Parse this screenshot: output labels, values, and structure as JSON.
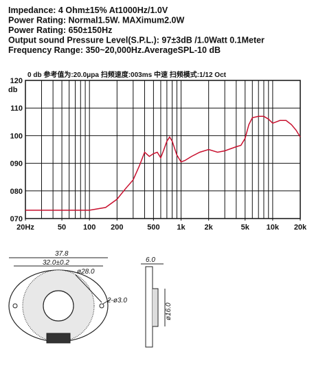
{
  "specs": [
    "Impedance: 4 Ohm±15%  At1000Hz/1.0V",
    "Power Rating: Normal1.5W. MAXimum2.0W",
    "Power Rating: 650±150Hz",
    "Output sound Pressure Level(S.P.L.): 97±3dB /1.0Watt 0.1Meter",
    "Frequency Range: 350~20,000Hz.AverageSPL-10 dB"
  ],
  "chart_data": {
    "type": "line",
    "header": "0 db  参考值为:20.0μpa  扫频速度:003ms  中速  扫频模式:1/12  Oct",
    "ylabel": "db",
    "x": [
      20,
      50,
      100,
      150,
      200,
      250,
      300,
      350,
      400,
      450,
      500,
      550,
      600,
      650,
      700,
      750,
      800,
      900,
      1000,
      1100,
      1300,
      1600,
      2000,
      2500,
      3000,
      4000,
      4500,
      5000,
      5500,
      6000,
      7000,
      8000,
      9000,
      10000,
      12000,
      14000,
      16000,
      18000,
      20000
    ],
    "values": [
      73,
      73,
      73,
      74,
      77,
      81,
      84,
      89,
      94,
      92.5,
      93.5,
      94,
      92,
      95,
      98,
      99.5,
      98,
      93,
      90.5,
      91,
      92.5,
      94,
      95,
      94,
      94.5,
      96,
      96.5,
      99,
      104,
      106.5,
      107,
      107,
      106,
      104.5,
      105.5,
      105.5,
      104,
      102,
      99.5
    ],
    "color": "#c8102e",
    "xlog": true,
    "xlim": [
      20,
      20000
    ],
    "ylim": [
      70,
      120
    ],
    "xticks": [
      {
        "value": 20,
        "label": "20Hz"
      },
      50,
      100,
      200,
      500,
      {
        "value": 1000,
        "label": "1k"
      },
      {
        "value": 2000,
        "label": "2k"
      },
      {
        "value": 5000,
        "label": "5k"
      },
      {
        "value": 10000,
        "label": "10k"
      },
      {
        "value": 20000,
        "label": "20k"
      }
    ],
    "x_grid": [
      20,
      30,
      40,
      50,
      60,
      70,
      80,
      90,
      100,
      200,
      300,
      400,
      500,
      600,
      700,
      800,
      900,
      1000,
      2000,
      3000,
      4000,
      5000,
      6000,
      7000,
      8000,
      9000,
      10000,
      20000
    ],
    "yticks": [
      {
        "value": 70,
        "label": "070"
      },
      {
        "value": 80,
        "label": "080"
      },
      {
        "value": 90,
        "label": "090"
      },
      100,
      110,
      120
    ],
    "grid": true
  },
  "drawing": {
    "outer": "37.8",
    "mount": "32.0±0.2",
    "cone": "ø28.0",
    "holes": "2-ø3.0",
    "depth": "6.0",
    "magnet": "ø16.0"
  }
}
